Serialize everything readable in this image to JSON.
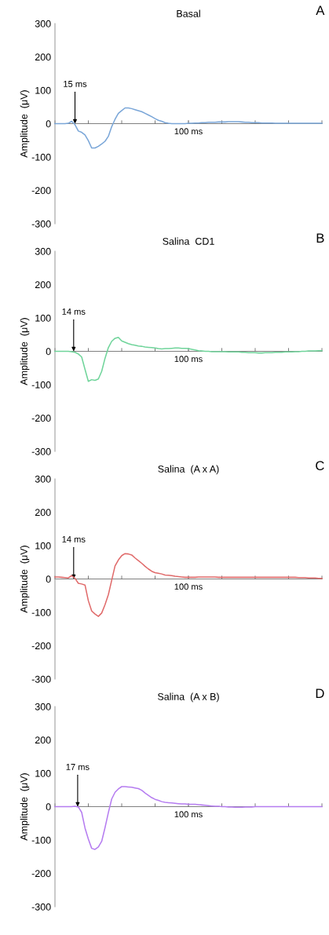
{
  "chart_data": [
    {
      "type": "line",
      "title": "Basal",
      "ylabel": "Amplitude  (μV)",
      "annotations": [
        {
          "text": "15 ms",
          "y": 0
        },
        "A"
      ],
      "ylim": [
        -300,
        300
      ],
      "yticks": [
        -300,
        -200,
        -100,
        0,
        100,
        200,
        300
      ],
      "categories": [
        null,
        null,
        null,
        null,
        null,
        null,
        null,
        null,
        null,
        null,
        null,
        null,
        null,
        null,
        null,
        null,
        null,
        null,
        null,
        null,
        null,
        null,
        null,
        null,
        null,
        null,
        null,
        null,
        null,
        null,
        null,
        null,
        null,
        null,
        null,
        null,
        null,
        null,
        null,
        null,
        "100 ms",
        null,
        null,
        null,
        null,
        null,
        null,
        null,
        null,
        null,
        null,
        null,
        null,
        null,
        null,
        null,
        null,
        null,
        null,
        null,
        null,
        null,
        null,
        null,
        null,
        null,
        null,
        null,
        null,
        null,
        null,
        null,
        null,
        null,
        null,
        null,
        null,
        null,
        null,
        null,
        null
      ],
      "series": [
        {
          "color": "#7aa6d8",
          "values": [
            0,
            0,
            0,
            0,
            1,
            7,
            -3,
            -22,
            -26,
            -34,
            -51,
            -73,
            -73,
            -68,
            -61,
            -53,
            -38,
            -9,
            13,
            31,
            39,
            47,
            47,
            45,
            42,
            39,
            36,
            31,
            26,
            21,
            15,
            10,
            7,
            3,
            1,
            0,
            0,
            0,
            0,
            0,
            1,
            1,
            2,
            2,
            3,
            3,
            4,
            4,
            4,
            5,
            5,
            5,
            6,
            6,
            6,
            6,
            5,
            4,
            4,
            3,
            3,
            3,
            2,
            2,
            2,
            2,
            1,
            1,
            1,
            1,
            1,
            1,
            1,
            1,
            1,
            1,
            1,
            1,
            1,
            1,
            1
          ]
        }
      ]
    },
    {
      "type": "line",
      "title": "Salina  CD1",
      "ylabel": "Amplitude  (μV)",
      "annotations": [
        {
          "text": "14 ms",
          "y": 0
        },
        "B"
      ],
      "ylim": [
        -300,
        300
      ],
      "yticks": [
        -300,
        -200,
        -100,
        0,
        100,
        200,
        300
      ],
      "categories": [
        null,
        null,
        null,
        null,
        null,
        null,
        null,
        null,
        null,
        null,
        null,
        null,
        null,
        null,
        null,
        null,
        null,
        null,
        null,
        null,
        null,
        null,
        null,
        null,
        null,
        null,
        null,
        null,
        null,
        null,
        null,
        null,
        null,
        null,
        null,
        null,
        null,
        null,
        null,
        null,
        "100 ms",
        null,
        null,
        null,
        null,
        null,
        null,
        null,
        null,
        null,
        null,
        null,
        null,
        null,
        null,
        null,
        null,
        null,
        null,
        null,
        null,
        null,
        null,
        null,
        null,
        null,
        null,
        null,
        null,
        null,
        null,
        null,
        null,
        null,
        null,
        null,
        null,
        null,
        null,
        null,
        null
      ],
      "series": [
        {
          "color": "#6fd49a",
          "values": [
            0,
            0,
            0,
            0,
            0,
            -1,
            -3,
            -8,
            -17,
            -54,
            -90,
            -85,
            -87,
            -83,
            -60,
            -21,
            11,
            30,
            39,
            42,
            31,
            27,
            23,
            20,
            18,
            16,
            15,
            13,
            12,
            11,
            10,
            8,
            7,
            8,
            8,
            9,
            10,
            10,
            9,
            9,
            8,
            6,
            4,
            2,
            1,
            0,
            0,
            -1,
            -1,
            -1,
            -1,
            -1,
            -2,
            -2,
            -2,
            -2,
            -3,
            -3,
            -4,
            -4,
            -4,
            -5,
            -5,
            -4,
            -4,
            -4,
            -3,
            -3,
            -3,
            -2,
            -2,
            -2,
            -1,
            -1,
            0,
            0,
            1,
            1,
            1,
            2,
            2
          ]
        }
      ]
    },
    {
      "type": "line",
      "title": "Salina  (A x A)",
      "ylabel": "Amplitude  (μV)",
      "annotations": [
        {
          "text": "14 ms",
          "y": 0
        },
        "C"
      ],
      "ylim": [
        -300,
        300
      ],
      "yticks": [
        -300,
        -200,
        -100,
        0,
        100,
        200,
        300
      ],
      "categories": [
        null,
        null,
        null,
        null,
        null,
        null,
        null,
        null,
        null,
        null,
        null,
        null,
        null,
        null,
        null,
        null,
        null,
        null,
        null,
        null,
        null,
        null,
        null,
        null,
        null,
        null,
        null,
        null,
        null,
        null,
        null,
        null,
        null,
        null,
        null,
        null,
        null,
        null,
        null,
        null,
        "100 ms",
        null,
        null,
        null,
        null,
        null,
        null,
        null,
        null,
        null,
        null,
        null,
        null,
        null,
        null,
        null,
        null,
        null,
        null,
        null,
        null,
        null,
        null,
        null,
        null,
        null,
        null,
        null,
        null,
        null,
        null,
        null,
        null,
        null,
        null,
        null,
        null,
        null,
        null,
        null,
        null
      ],
      "series": [
        {
          "color": "#e06a6a",
          "values": [
            6,
            6,
            5,
            4,
            3,
            10,
            2,
            -13,
            -15,
            -18,
            -65,
            -96,
            -105,
            -112,
            -102,
            -77,
            -47,
            -4,
            39,
            57,
            70,
            76,
            75,
            72,
            63,
            55,
            47,
            38,
            30,
            23,
            19,
            17,
            15,
            12,
            11,
            10,
            8,
            7,
            6,
            5,
            5,
            5,
            5,
            6,
            6,
            6,
            6,
            6,
            6,
            5,
            5,
            5,
            5,
            5,
            5,
            5,
            5,
            5,
            5,
            5,
            5,
            5,
            5,
            5,
            5,
            5,
            5,
            5,
            5,
            5,
            5,
            5,
            5,
            4,
            4,
            4,
            3,
            3,
            3,
            2,
            2
          ]
        }
      ]
    },
    {
      "type": "line",
      "title": "Salina  (A x B)",
      "ylabel": "Amplitude  (μV)",
      "annotations": [
        {
          "text": "17 ms",
          "y": 0
        },
        "D"
      ],
      "ylim": [
        -300,
        300
      ],
      "yticks": [
        -300,
        -200,
        -100,
        0,
        100,
        200,
        300
      ],
      "categories": [
        null,
        null,
        null,
        null,
        null,
        null,
        null,
        null,
        null,
        null,
        null,
        null,
        null,
        null,
        null,
        null,
        null,
        null,
        null,
        null,
        null,
        null,
        null,
        null,
        null,
        null,
        null,
        null,
        null,
        null,
        null,
        null,
        null,
        null,
        null,
        null,
        null,
        null,
        null,
        null,
        "100 ms",
        null,
        null,
        null,
        null,
        null,
        null,
        null,
        null,
        null,
        null,
        null,
        null,
        null,
        null,
        null,
        null,
        null,
        null,
        null,
        null,
        null,
        null,
        null,
        null,
        null,
        null,
        null,
        null,
        null,
        null,
        null,
        null,
        null,
        null,
        null,
        null,
        null,
        null,
        null,
        null
      ],
      "series": [
        {
          "color": "#b57cf0",
          "values": [
            0,
            0,
            0,
            0,
            0,
            0,
            1,
            -1,
            -17,
            -64,
            -97,
            -125,
            -128,
            -121,
            -104,
            -63,
            -18,
            23,
            43,
            53,
            60,
            60,
            59,
            58,
            56,
            54,
            49,
            41,
            34,
            27,
            22,
            19,
            15,
            13,
            12,
            11,
            10,
            9,
            8,
            8,
            7,
            7,
            7,
            6,
            5,
            4,
            3,
            2,
            1,
            1,
            0,
            0,
            -1,
            -1,
            -2,
            -2,
            -2,
            -1,
            -1,
            -1,
            0,
            0,
            0,
            0,
            0,
            0,
            0,
            0,
            0,
            0,
            0,
            0,
            0,
            0,
            0,
            0,
            0,
            0,
            0,
            0,
            0
          ]
        }
      ]
    }
  ]
}
